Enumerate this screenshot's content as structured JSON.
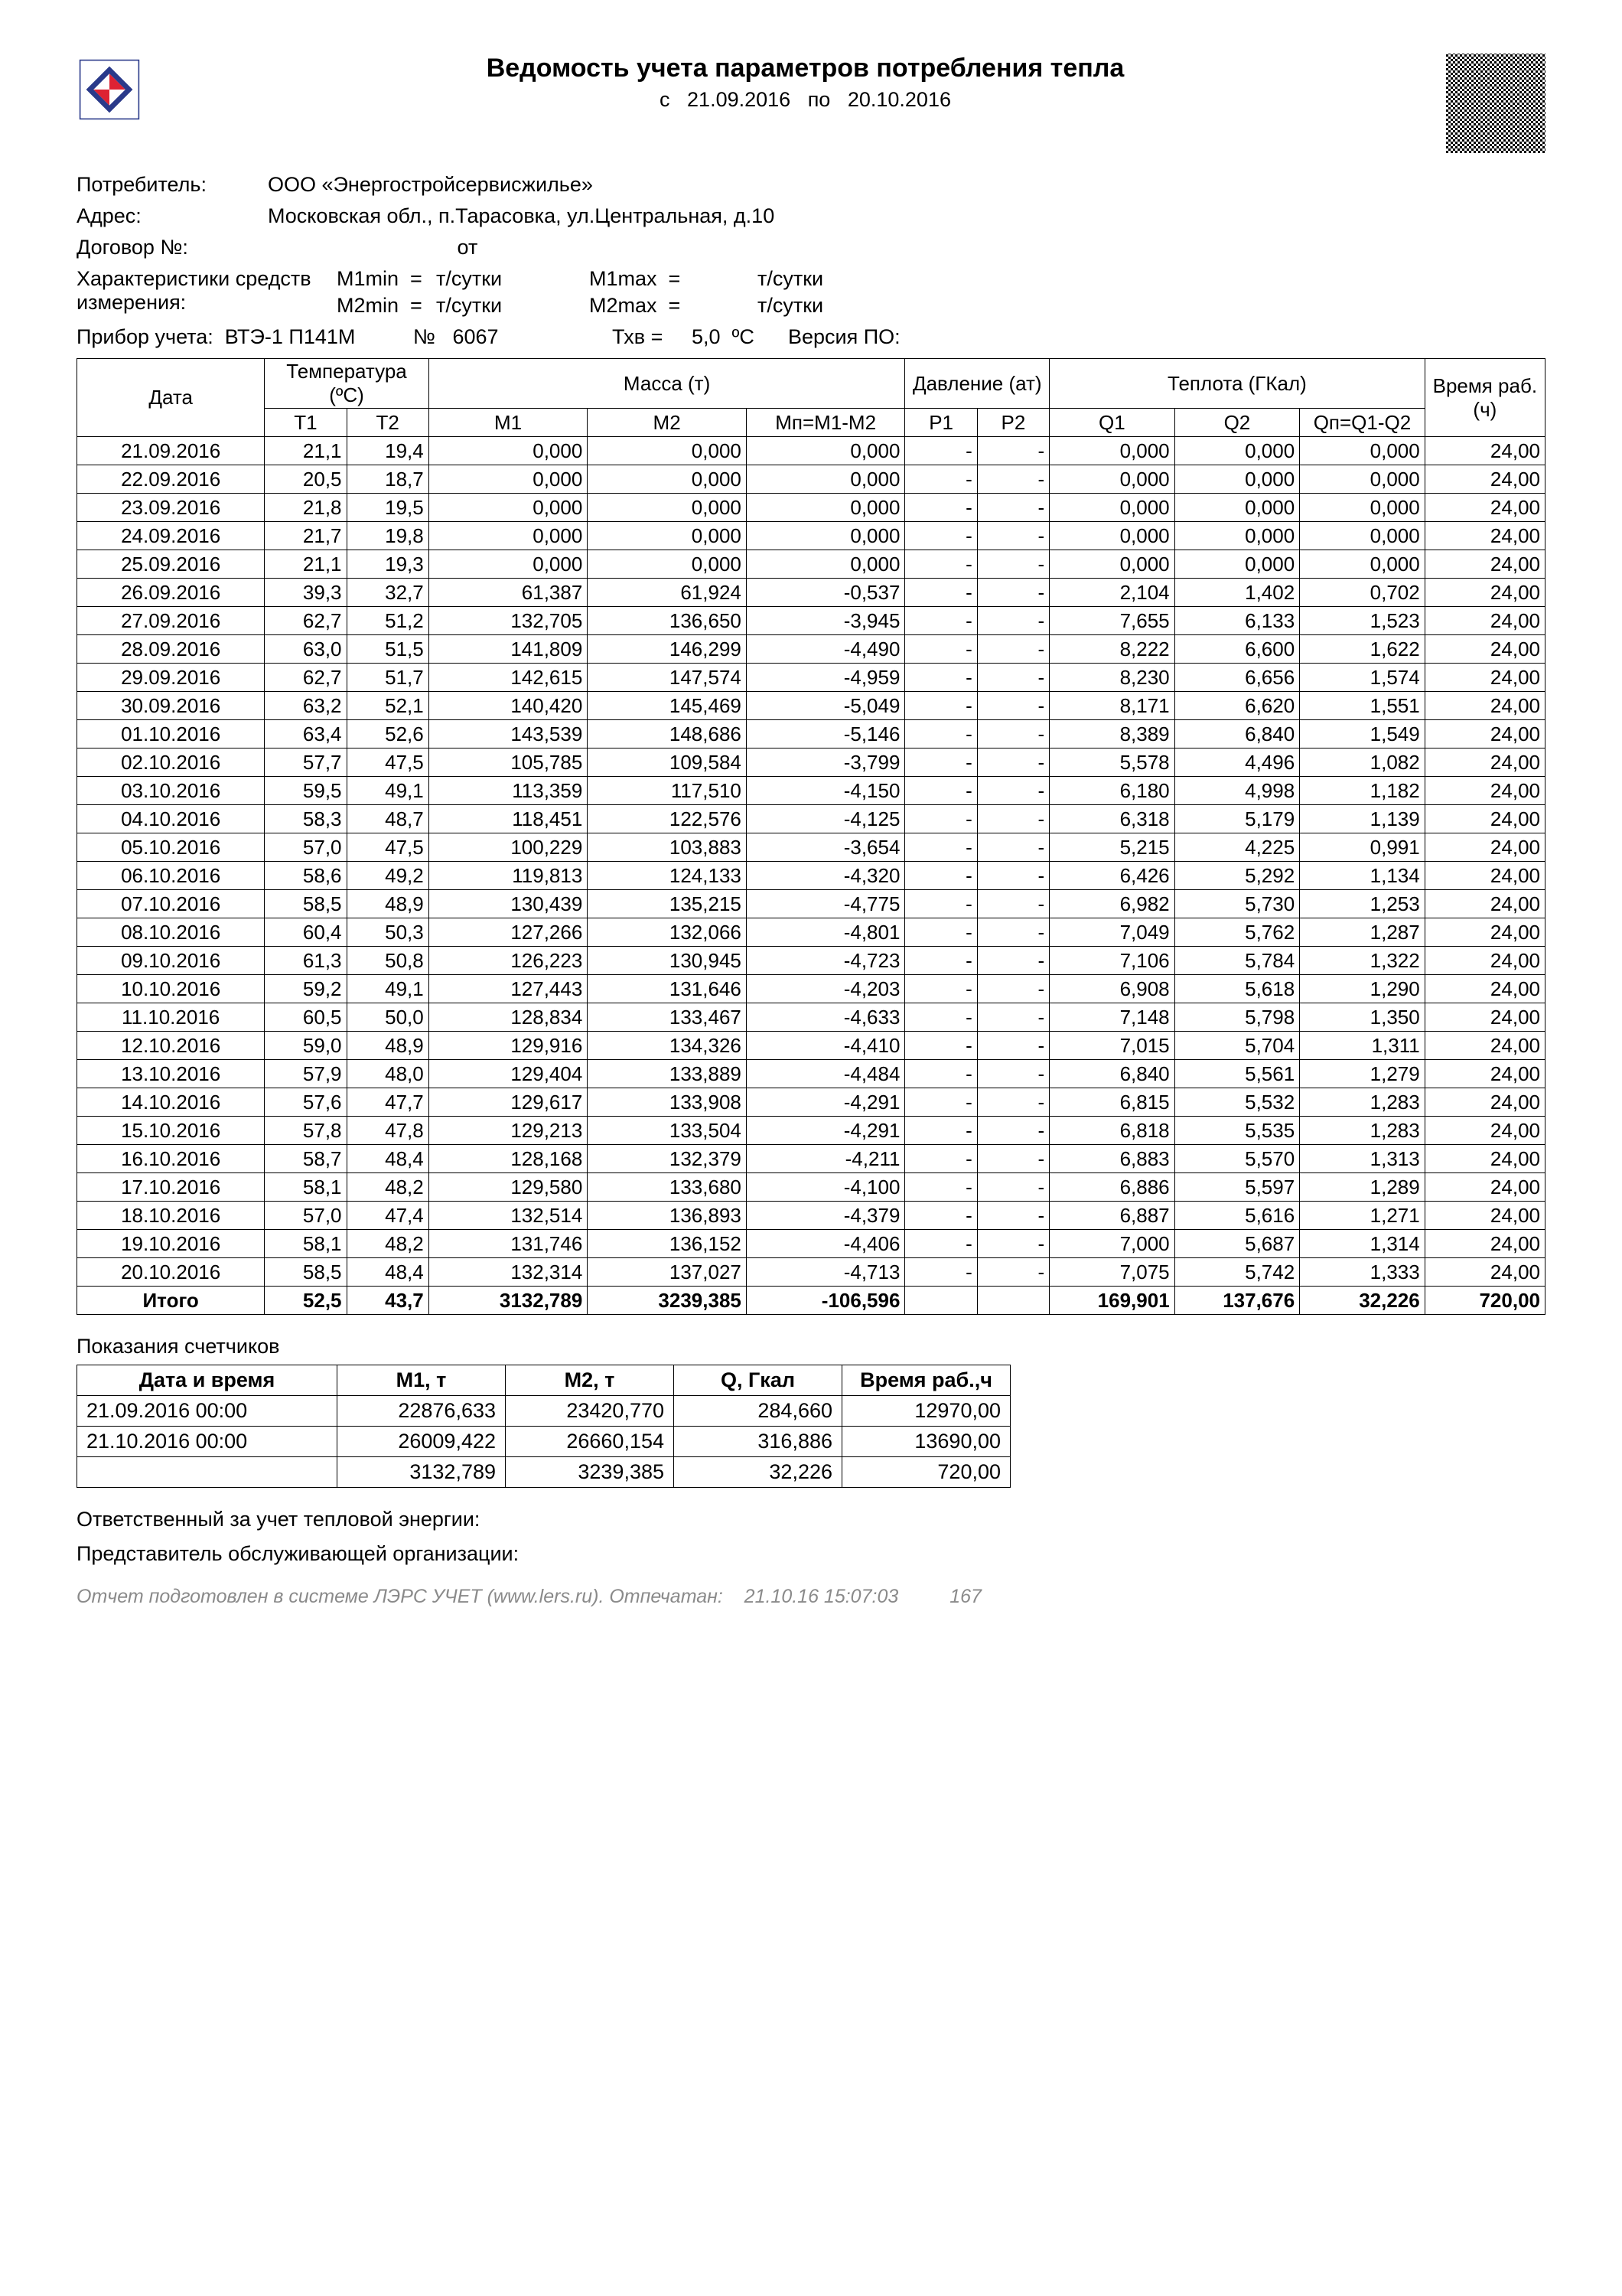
{
  "title": "Ведомость учета параметров потребления тепла",
  "period_prefix": "с",
  "period_from": "21.09.2016",
  "period_mid": "по",
  "period_to": "20.10.2016",
  "meta": {
    "consumer_label": "Потребитель:",
    "consumer": "ООО «Энергостройсервисжилье»",
    "address_label": "Адрес:",
    "address": "Московская обл., п.Тарасовка, ул.Центральная, д.10",
    "contract_label": "Договор №:",
    "contract_from": "от",
    "char_label1": "Характеристики средств",
    "char_label2": "измерения:",
    "m1min": "M1min  =",
    "m2min": "M2min  =",
    "m1max": "M1max  =",
    "m2max": "M2max  =",
    "tday": "т/сутки",
    "device_label": "Прибор учета:",
    "device": "ВТЭ-1 П141М",
    "serial_label": "№",
    "serial": "6067",
    "txv_label": "Тхв =",
    "txv_val": "5,0",
    "txv_unit": "ºC",
    "fw_label": "Версия ПО:"
  },
  "table": {
    "h_date": "Дата",
    "h_temp": "Температура (ºC)",
    "h_mass": "Масса (т)",
    "h_pres": "Давление (ат)",
    "h_heat": "Теплота (ГКал)",
    "h_time": "Время раб.(ч)",
    "h_t1": "T1",
    "h_t2": "T2",
    "h_m1": "M1",
    "h_m2": "M2",
    "h_mn": "Mп=M1-M2",
    "h_p1": "P1",
    "h_p2": "P2",
    "h_q1": "Q1",
    "h_q2": "Q2",
    "h_qn": "Qп=Q1-Q2",
    "rows": [
      [
        "21.09.2016",
        "21,1",
        "19,4",
        "0,000",
        "0,000",
        "0,000",
        "-",
        "-",
        "0,000",
        "0,000",
        "0,000",
        "24,00"
      ],
      [
        "22.09.2016",
        "20,5",
        "18,7",
        "0,000",
        "0,000",
        "0,000",
        "-",
        "-",
        "0,000",
        "0,000",
        "0,000",
        "24,00"
      ],
      [
        "23.09.2016",
        "21,8",
        "19,5",
        "0,000",
        "0,000",
        "0,000",
        "-",
        "-",
        "0,000",
        "0,000",
        "0,000",
        "24,00"
      ],
      [
        "24.09.2016",
        "21,7",
        "19,8",
        "0,000",
        "0,000",
        "0,000",
        "-",
        "-",
        "0,000",
        "0,000",
        "0,000",
        "24,00"
      ],
      [
        "25.09.2016",
        "21,1",
        "19,3",
        "0,000",
        "0,000",
        "0,000",
        "-",
        "-",
        "0,000",
        "0,000",
        "0,000",
        "24,00"
      ],
      [
        "26.09.2016",
        "39,3",
        "32,7",
        "61,387",
        "61,924",
        "-0,537",
        "-",
        "-",
        "2,104",
        "1,402",
        "0,702",
        "24,00"
      ],
      [
        "27.09.2016",
        "62,7",
        "51,2",
        "132,705",
        "136,650",
        "-3,945",
        "-",
        "-",
        "7,655",
        "6,133",
        "1,523",
        "24,00"
      ],
      [
        "28.09.2016",
        "63,0",
        "51,5",
        "141,809",
        "146,299",
        "-4,490",
        "-",
        "-",
        "8,222",
        "6,600",
        "1,622",
        "24,00"
      ],
      [
        "29.09.2016",
        "62,7",
        "51,7",
        "142,615",
        "147,574",
        "-4,959",
        "-",
        "-",
        "8,230",
        "6,656",
        "1,574",
        "24,00"
      ],
      [
        "30.09.2016",
        "63,2",
        "52,1",
        "140,420",
        "145,469",
        "-5,049",
        "-",
        "-",
        "8,171",
        "6,620",
        "1,551",
        "24,00"
      ],
      [
        "01.10.2016",
        "63,4",
        "52,6",
        "143,539",
        "148,686",
        "-5,146",
        "-",
        "-",
        "8,389",
        "6,840",
        "1,549",
        "24,00"
      ],
      [
        "02.10.2016",
        "57,7",
        "47,5",
        "105,785",
        "109,584",
        "-3,799",
        "-",
        "-",
        "5,578",
        "4,496",
        "1,082",
        "24,00"
      ],
      [
        "03.10.2016",
        "59,5",
        "49,1",
        "113,359",
        "117,510",
        "-4,150",
        "-",
        "-",
        "6,180",
        "4,998",
        "1,182",
        "24,00"
      ],
      [
        "04.10.2016",
        "58,3",
        "48,7",
        "118,451",
        "122,576",
        "-4,125",
        "-",
        "-",
        "6,318",
        "5,179",
        "1,139",
        "24,00"
      ],
      [
        "05.10.2016",
        "57,0",
        "47,5",
        "100,229",
        "103,883",
        "-3,654",
        "-",
        "-",
        "5,215",
        "4,225",
        "0,991",
        "24,00"
      ],
      [
        "06.10.2016",
        "58,6",
        "49,2",
        "119,813",
        "124,133",
        "-4,320",
        "-",
        "-",
        "6,426",
        "5,292",
        "1,134",
        "24,00"
      ],
      [
        "07.10.2016",
        "58,5",
        "48,9",
        "130,439",
        "135,215",
        "-4,775",
        "-",
        "-",
        "6,982",
        "5,730",
        "1,253",
        "24,00"
      ],
      [
        "08.10.2016",
        "60,4",
        "50,3",
        "127,266",
        "132,066",
        "-4,801",
        "-",
        "-",
        "7,049",
        "5,762",
        "1,287",
        "24,00"
      ],
      [
        "09.10.2016",
        "61,3",
        "50,8",
        "126,223",
        "130,945",
        "-4,723",
        "-",
        "-",
        "7,106",
        "5,784",
        "1,322",
        "24,00"
      ],
      [
        "10.10.2016",
        "59,2",
        "49,1",
        "127,443",
        "131,646",
        "-4,203",
        "-",
        "-",
        "6,908",
        "5,618",
        "1,290",
        "24,00"
      ],
      [
        "11.10.2016",
        "60,5",
        "50,0",
        "128,834",
        "133,467",
        "-4,633",
        "-",
        "-",
        "7,148",
        "5,798",
        "1,350",
        "24,00"
      ],
      [
        "12.10.2016",
        "59,0",
        "48,9",
        "129,916",
        "134,326",
        "-4,410",
        "-",
        "-",
        "7,015",
        "5,704",
        "1,311",
        "24,00"
      ],
      [
        "13.10.2016",
        "57,9",
        "48,0",
        "129,404",
        "133,889",
        "-4,484",
        "-",
        "-",
        "6,840",
        "5,561",
        "1,279",
        "24,00"
      ],
      [
        "14.10.2016",
        "57,6",
        "47,7",
        "129,617",
        "133,908",
        "-4,291",
        "-",
        "-",
        "6,815",
        "5,532",
        "1,283",
        "24,00"
      ],
      [
        "15.10.2016",
        "57,8",
        "47,8",
        "129,213",
        "133,504",
        "-4,291",
        "-",
        "-",
        "6,818",
        "5,535",
        "1,283",
        "24,00"
      ],
      [
        "16.10.2016",
        "58,7",
        "48,4",
        "128,168",
        "132,379",
        "-4,211",
        "-",
        "-",
        "6,883",
        "5,570",
        "1,313",
        "24,00"
      ],
      [
        "17.10.2016",
        "58,1",
        "48,2",
        "129,580",
        "133,680",
        "-4,100",
        "-",
        "-",
        "6,886",
        "5,597",
        "1,289",
        "24,00"
      ],
      [
        "18.10.2016",
        "57,0",
        "47,4",
        "132,514",
        "136,893",
        "-4,379",
        "-",
        "-",
        "6,887",
        "5,616",
        "1,271",
        "24,00"
      ],
      [
        "19.10.2016",
        "58,1",
        "48,2",
        "131,746",
        "136,152",
        "-4,406",
        "-",
        "-",
        "7,000",
        "5,687",
        "1,314",
        "24,00"
      ],
      [
        "20.10.2016",
        "58,5",
        "48,4",
        "132,314",
        "137,027",
        "-4,713",
        "-",
        "-",
        "7,075",
        "5,742",
        "1,333",
        "24,00"
      ]
    ],
    "total_label": "Итого",
    "total": [
      "52,5",
      "43,7",
      "3132,789",
      "3239,385",
      "-106,596",
      "",
      "",
      "169,901",
      "137,676",
      "32,226",
      "720,00"
    ]
  },
  "meter": {
    "title": "Показания счетчиков",
    "h_dt": "Дата и время",
    "h_m1": "M1, т",
    "h_m2": "M2, т",
    "h_q": "Q, Гкал",
    "h_t": "Время раб.,ч",
    "rows": [
      [
        "21.09.2016  00:00",
        "22876,633",
        "23420,770",
        "284,660",
        "12970,00"
      ],
      [
        "21.10.2016  00:00",
        "26009,422",
        "26660,154",
        "316,886",
        "13690,00"
      ],
      [
        "",
        "3132,789",
        "3239,385",
        "32,226",
        "720,00"
      ]
    ]
  },
  "sign": {
    "r1": "Ответственный за учет тепловой энергии:",
    "r2": "Представитель обслуживающей организации:"
  },
  "footer": {
    "txt": "Отчет подготовлен в системе ЛЭРС УЧЕТ (www.lers.ru). Отпечатан:",
    "ts": "21.10.16 15:07:03",
    "page": "167"
  }
}
